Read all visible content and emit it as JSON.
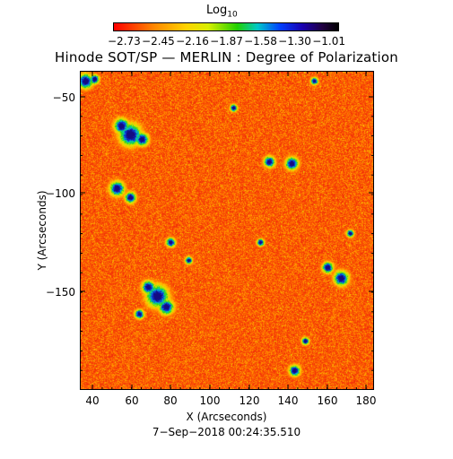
{
  "colorbar": {
    "title": "Log",
    "title_subscript": "10",
    "tick_labels": [
      "−2.73",
      "−2.45",
      "−2.16",
      "−1.87",
      "−1.58",
      "−1.30",
      "−1.01"
    ]
  },
  "title": "Hinode SOT/SP — MERLIN : Degree of Polarization",
  "x_axis": {
    "label": "X (Arcseconds)",
    "range": [
      32,
      183
    ],
    "tick_labels": [
      "40",
      "60",
      "80",
      "100",
      "120",
      "140",
      "160",
      "180"
    ]
  },
  "y_axis": {
    "label": "Y (Arcseconds)",
    "range": [
      -198,
      -36
    ],
    "tick_labels": [
      "−50",
      "−100",
      "−150"
    ]
  },
  "timestamp": "7−Sep−2018 00:24:35.510",
  "colors": {
    "background_low": "#f14a12",
    "high_polarization": "#1020c0"
  }
}
